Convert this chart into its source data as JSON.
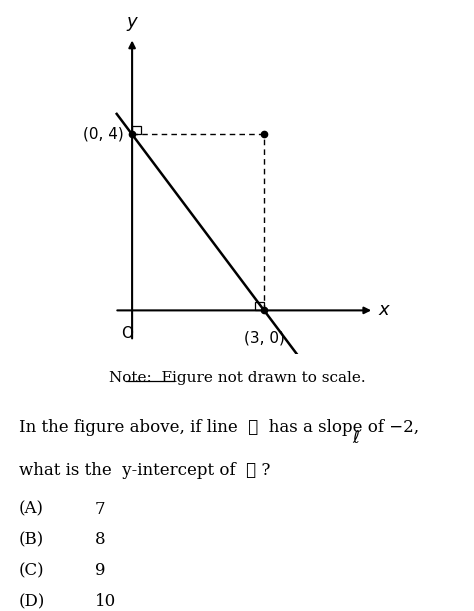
{
  "bg_color": "#ffffff",
  "fig_width": 4.74,
  "fig_height": 6.11,
  "dpi": 100,
  "graph": {
    "xlim": [
      -0.6,
      5.8
    ],
    "ylim": [
      -1.0,
      6.5
    ],
    "origin_label": "O",
    "point1": [
      0,
      4
    ],
    "point1_label": "(0, 4)",
    "point2": [
      3,
      0
    ],
    "point2_label": "(3, 0)",
    "line_label": "ℓ",
    "x_arrow_label": "x",
    "y_arrow_label": "y"
  },
  "note_word": "Note:",
  "note_rest": "  Figure not drawn to scale.",
  "question_line1": "In the figure above, if line  ",
  "question_ell1": "ℓ",
  "question_line1b": "  has a slope of −2,",
  "question_line2a": "what is the  y-intercept of  ",
  "question_ell2": "ℓ",
  "question_line2b": " ?",
  "choices_letter": [
    "(A)",
    "(B)",
    "(C)",
    "(D)"
  ],
  "choices_num": [
    "7",
    "8",
    "9",
    "10"
  ],
  "font_color": "#000000",
  "fontsize_graph": 11,
  "fontsize_note": 11,
  "fontsize_question": 12,
  "fontsize_choices": 12
}
